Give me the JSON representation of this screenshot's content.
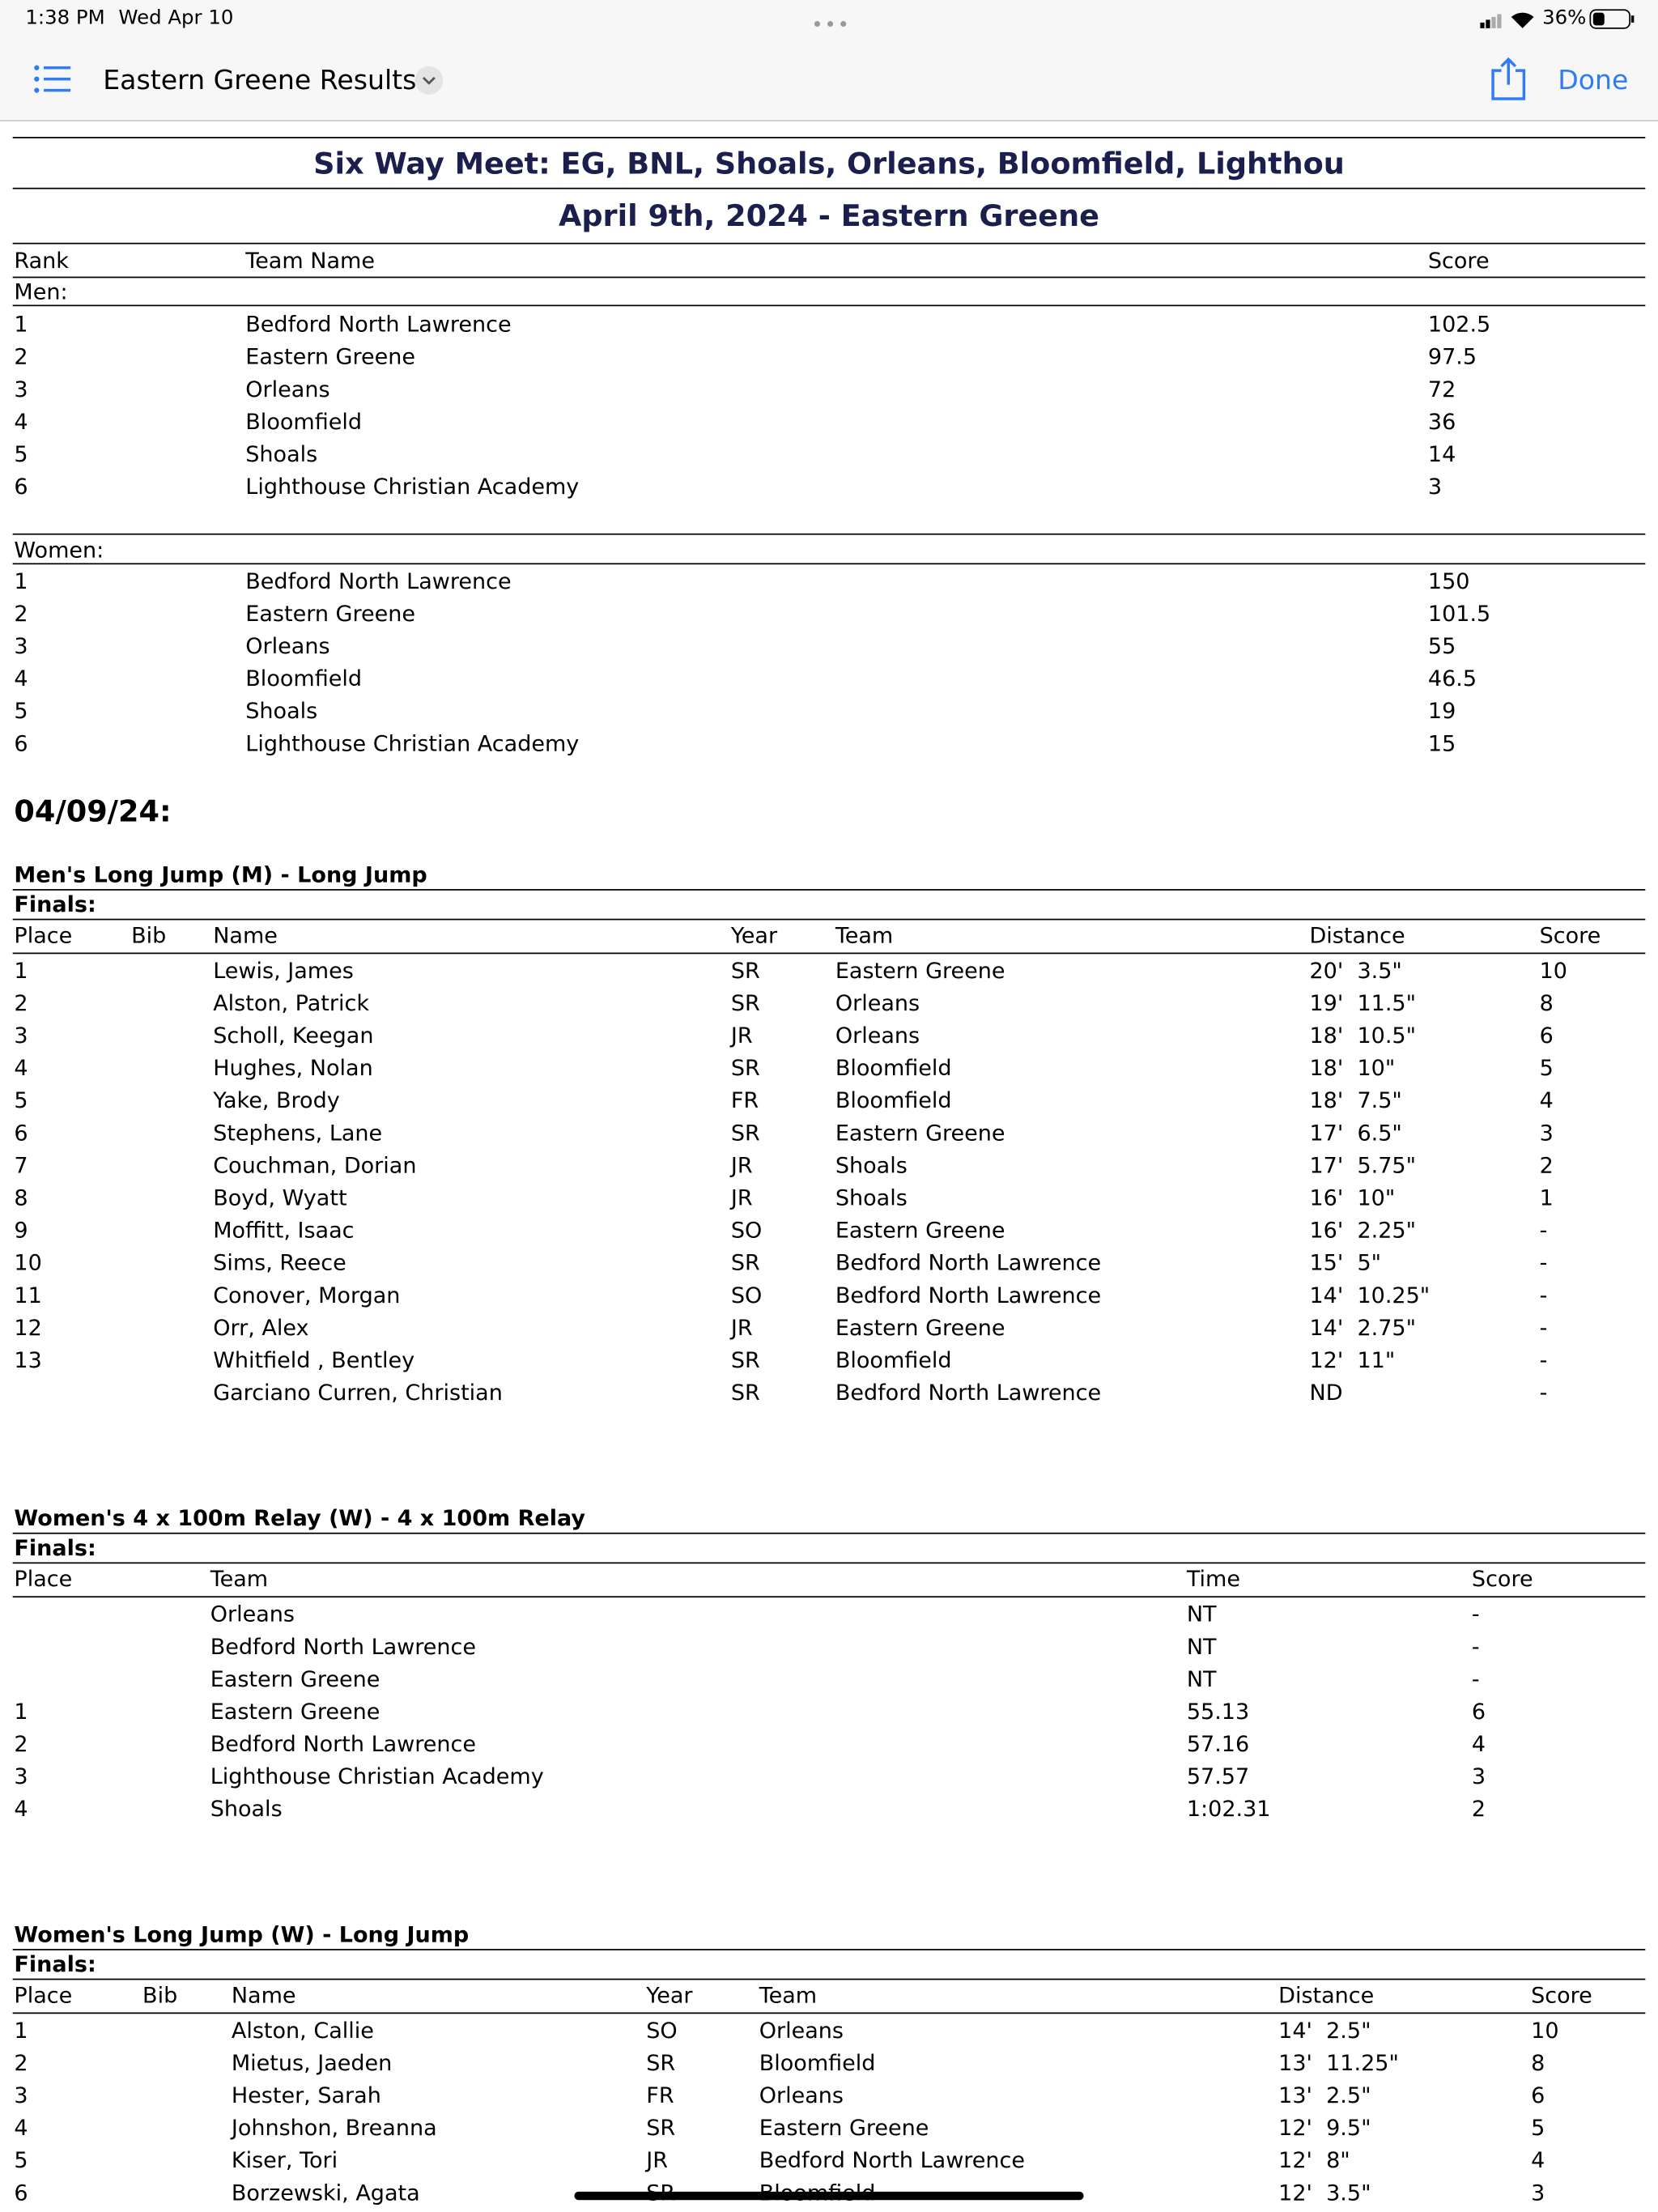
{
  "status": {
    "time": "1:38 PM",
    "date": "Wed Apr 10",
    "battery": "36%"
  },
  "nav": {
    "title": "Eastern Greene Results",
    "done": "Done"
  },
  "meet": {
    "title": "Six Way Meet: EG, BNL, Shoals, Orleans, Bloomfield, Lighthou",
    "date": "April 9th, 2024 - Eastern Greene"
  },
  "team_scores": {
    "headers": [
      "Rank",
      "Team Name",
      "Score"
    ],
    "men_label": "Men:",
    "men": [
      [
        "1",
        "Bedford North Lawrence",
        "102.5"
      ],
      [
        "2",
        "Eastern Greene",
        "97.5"
      ],
      [
        "3",
        "Orleans",
        "72"
      ],
      [
        "4",
        "Bloomfield",
        "36"
      ],
      [
        "5",
        "Shoals",
        "14"
      ],
      [
        "6",
        "Lighthouse Christian Academy",
        "3"
      ]
    ],
    "women_label": "Women:",
    "women": [
      [
        "1",
        "Bedford North Lawrence",
        "150"
      ],
      [
        "2",
        "Eastern Greene",
        "101.5"
      ],
      [
        "3",
        "Orleans",
        "55"
      ],
      [
        "4",
        "Bloomfield",
        "46.5"
      ],
      [
        "5",
        "Shoals",
        "19"
      ],
      [
        "6",
        "Lighthouse Christian Academy",
        "15"
      ]
    ]
  },
  "day": "04/09/24:",
  "events": [
    {
      "title": "Men's Long Jump (M) - Long Jump",
      "round": "Finals:",
      "headers": [
        "Place",
        "Bib",
        "Name",
        "Year",
        "Team",
        "Distance",
        "Score"
      ],
      "rows": [
        [
          "1",
          null,
          "Lewis, James",
          "SR",
          "Eastern Greene",
          "20'  3.5\"",
          "10"
        ],
        [
          "2",
          null,
          "Alston, Patrick",
          "SR",
          "Orleans",
          "19'  11.5\"",
          "8"
        ],
        [
          "3",
          null,
          "Scholl, Keegan",
          "JR",
          "Orleans",
          "18'  10.5\"",
          "6"
        ],
        [
          "4",
          null,
          "Hughes, Nolan",
          "SR",
          "Bloomfield",
          "18'  10\"",
          "5"
        ],
        [
          "5",
          null,
          "Yake, Brody",
          "FR",
          "Bloomfield",
          "18'  7.5\"",
          "4"
        ],
        [
          "6",
          null,
          "Stephens, Lane",
          "SR",
          "Eastern Greene",
          "17'  6.5\"",
          "3"
        ],
        [
          "7",
          null,
          "Couchman, Dorian",
          "JR",
          "Shoals",
          "17'  5.75\"",
          "2"
        ],
        [
          "8",
          null,
          "Boyd, Wyatt",
          "JR",
          "Shoals",
          "16'  10\"",
          "1"
        ],
        [
          "9",
          null,
          "Moffitt, Isaac",
          "SO",
          "Eastern Greene",
          "16'  2.25\"",
          "-"
        ],
        [
          "10",
          null,
          "Sims, Reece",
          "SR",
          "Bedford North Lawrence",
          "15'  5\"",
          "-"
        ],
        [
          "11",
          null,
          "Conover, Morgan",
          "SO",
          "Bedford North Lawrence",
          "14'  10.25\"",
          "-"
        ],
        [
          "12",
          null,
          "Orr, Alex",
          "JR",
          "Eastern Greene",
          "14'  2.75\"",
          "-"
        ],
        [
          "13",
          null,
          "Whitfield , Bentley",
          "SR",
          "Bloomfield",
          "12'  11\"",
          "-"
        ],
        [
          null,
          null,
          "Garciano Curren, Christian",
          "SR",
          "Bedford North Lawrence",
          "ND",
          "-"
        ]
      ]
    },
    {
      "title": "Women's 4 x 100m Relay (W) - 4 x 100m Relay",
      "round": "Finals:",
      "headers": [
        "Place",
        "Team",
        "Time",
        "Score"
      ],
      "rows": [
        [
          null,
          "Orleans",
          "NT",
          "-"
        ],
        [
          null,
          "Bedford North Lawrence",
          "NT",
          "-"
        ],
        [
          null,
          "Eastern Greene",
          "NT",
          "-"
        ],
        [
          "1",
          "Eastern Greene",
          "55.13",
          "6"
        ],
        [
          "2",
          "Bedford North Lawrence",
          "57.16",
          "4"
        ],
        [
          "3",
          "Lighthouse Christian Academy",
          "57.57",
          "3"
        ],
        [
          "4",
          "Shoals",
          "1:02.31",
          "2"
        ]
      ]
    },
    {
      "title": "Women's Long Jump (W) - Long Jump",
      "round": "Finals:",
      "headers": [
        "Place",
        "Bib",
        "Name",
        "Year",
        "Team",
        "Distance",
        "Score"
      ],
      "rows": [
        [
          "1",
          null,
          "Alston, Callie",
          "SO",
          "Orleans",
          "14'  2.5\"",
          "10"
        ],
        [
          "2",
          null,
          "Mietus, Jaeden",
          "SR",
          "Bloomfield",
          "13'  11.25\"",
          "8"
        ],
        [
          "3",
          null,
          "Hester, Sarah",
          "FR",
          "Orleans",
          "13'  2.5\"",
          "6"
        ],
        [
          "4",
          null,
          "Johnshon, Breanna",
          "SR",
          "Eastern Greene",
          "12'  9.5\"",
          "5"
        ],
        [
          "5",
          null,
          "Kiser, Tori",
          "JR",
          "Bedford North Lawrence",
          "12'  8\"",
          "4"
        ],
        [
          "6",
          null,
          "Borzewski, Agata",
          "SR",
          "Bloomfield",
          "12'  3.5\"",
          "3"
        ]
      ]
    }
  ]
}
